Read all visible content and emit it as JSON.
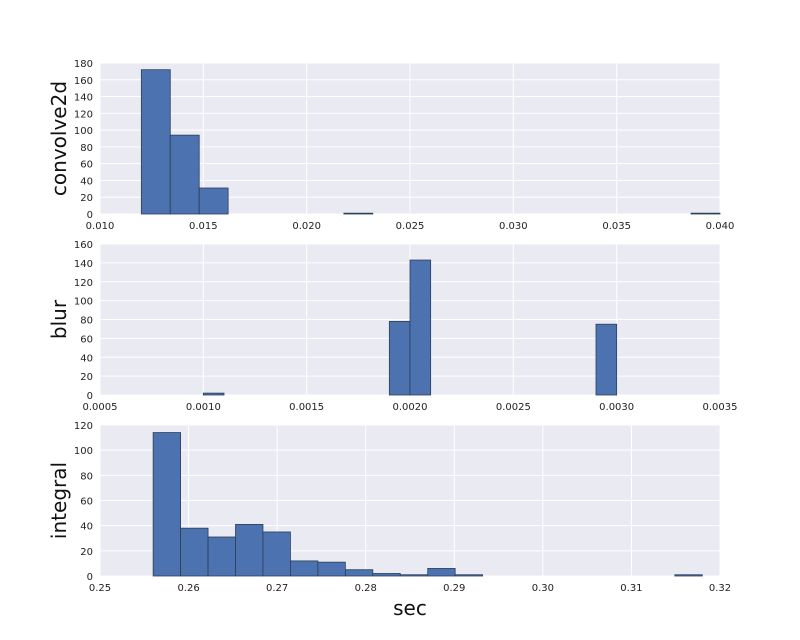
{
  "figure": {
    "background": "#ffffff"
  },
  "style": {
    "plot_bg": "#eaeaf2",
    "grid": "#ffffff",
    "bar_fill": "#4c72b0",
    "bar_edge": "#2c3e5a"
  },
  "chart_data": [
    {
      "type": "histogram",
      "ylabel": "convolve2d",
      "xlabel": "",
      "xlim": [
        0.01,
        0.04
      ],
      "ylim": [
        0,
        180
      ],
      "xticks": [
        "0.010",
        "0.015",
        "0.020",
        "0.025",
        "0.030",
        "0.035",
        "0.040"
      ],
      "xtick_values": [
        0.01,
        0.015,
        0.02,
        0.025,
        0.03,
        0.035,
        0.04
      ],
      "yticks": [
        "0",
        "20",
        "40",
        "60",
        "80",
        "100",
        "120",
        "140",
        "160",
        "180"
      ],
      "ytick_values": [
        0,
        20,
        40,
        60,
        80,
        100,
        120,
        140,
        160,
        180
      ],
      "bins": [
        {
          "x0": 0.012,
          "x1": 0.0134,
          "count": 172
        },
        {
          "x0": 0.0134,
          "x1": 0.0148,
          "count": 94
        },
        {
          "x0": 0.0148,
          "x1": 0.0162,
          "count": 31
        },
        {
          "x0": 0.0218,
          "x1": 0.0232,
          "count": 1
        },
        {
          "x0": 0.0386,
          "x1": 0.04,
          "count": 1
        }
      ]
    },
    {
      "type": "histogram",
      "ylabel": "blur",
      "xlabel": "",
      "xlim": [
        0.0005,
        0.0035
      ],
      "ylim": [
        0,
        160
      ],
      "xticks": [
        "0.0005",
        "0.0010",
        "0.0015",
        "0.0020",
        "0.0025",
        "0.0030",
        "0.0035"
      ],
      "xtick_values": [
        0.0005,
        0.001,
        0.0015,
        0.002,
        0.0025,
        0.003,
        0.0035
      ],
      "yticks": [
        "0",
        "20",
        "40",
        "60",
        "80",
        "100",
        "120",
        "140",
        "160"
      ],
      "ytick_values": [
        0,
        20,
        40,
        60,
        80,
        100,
        120,
        140,
        160
      ],
      "bins": [
        {
          "x0": 0.001,
          "x1": 0.0011,
          "count": 2
        },
        {
          "x0": 0.0019,
          "x1": 0.002,
          "count": 78
        },
        {
          "x0": 0.002,
          "x1": 0.0021,
          "count": 143
        },
        {
          "x0": 0.0029,
          "x1": 0.003,
          "count": 75
        }
      ]
    },
    {
      "type": "histogram",
      "ylabel": "integral",
      "xlabel": "sec",
      "xlim": [
        0.25,
        0.32
      ],
      "ylim": [
        0,
        120
      ],
      "xticks": [
        "0.25",
        "0.26",
        "0.27",
        "0.28",
        "0.29",
        "0.30",
        "0.31",
        "0.32"
      ],
      "xtick_values": [
        0.25,
        0.26,
        0.27,
        0.28,
        0.29,
        0.3,
        0.31,
        0.32
      ],
      "yticks": [
        "0",
        "20",
        "40",
        "60",
        "80",
        "100",
        "120"
      ],
      "ytick_values": [
        0,
        20,
        40,
        60,
        80,
        100,
        120
      ],
      "bins": [
        {
          "x0": 0.256,
          "x1": 0.2591,
          "count": 114
        },
        {
          "x0": 0.2591,
          "x1": 0.2622,
          "count": 38
        },
        {
          "x0": 0.2622,
          "x1": 0.2653,
          "count": 31
        },
        {
          "x0": 0.2653,
          "x1": 0.2684,
          "count": 41
        },
        {
          "x0": 0.2684,
          "x1": 0.2715,
          "count": 35
        },
        {
          "x0": 0.2715,
          "x1": 0.2746,
          "count": 12
        },
        {
          "x0": 0.2746,
          "x1": 0.2777,
          "count": 11
        },
        {
          "x0": 0.2777,
          "x1": 0.2808,
          "count": 5
        },
        {
          "x0": 0.2808,
          "x1": 0.2839,
          "count": 2
        },
        {
          "x0": 0.2839,
          "x1": 0.287,
          "count": 1
        },
        {
          "x0": 0.287,
          "x1": 0.2901,
          "count": 6
        },
        {
          "x0": 0.2901,
          "x1": 0.2932,
          "count": 1
        },
        {
          "x0": 0.3149,
          "x1": 0.318,
          "count": 1
        }
      ]
    }
  ]
}
